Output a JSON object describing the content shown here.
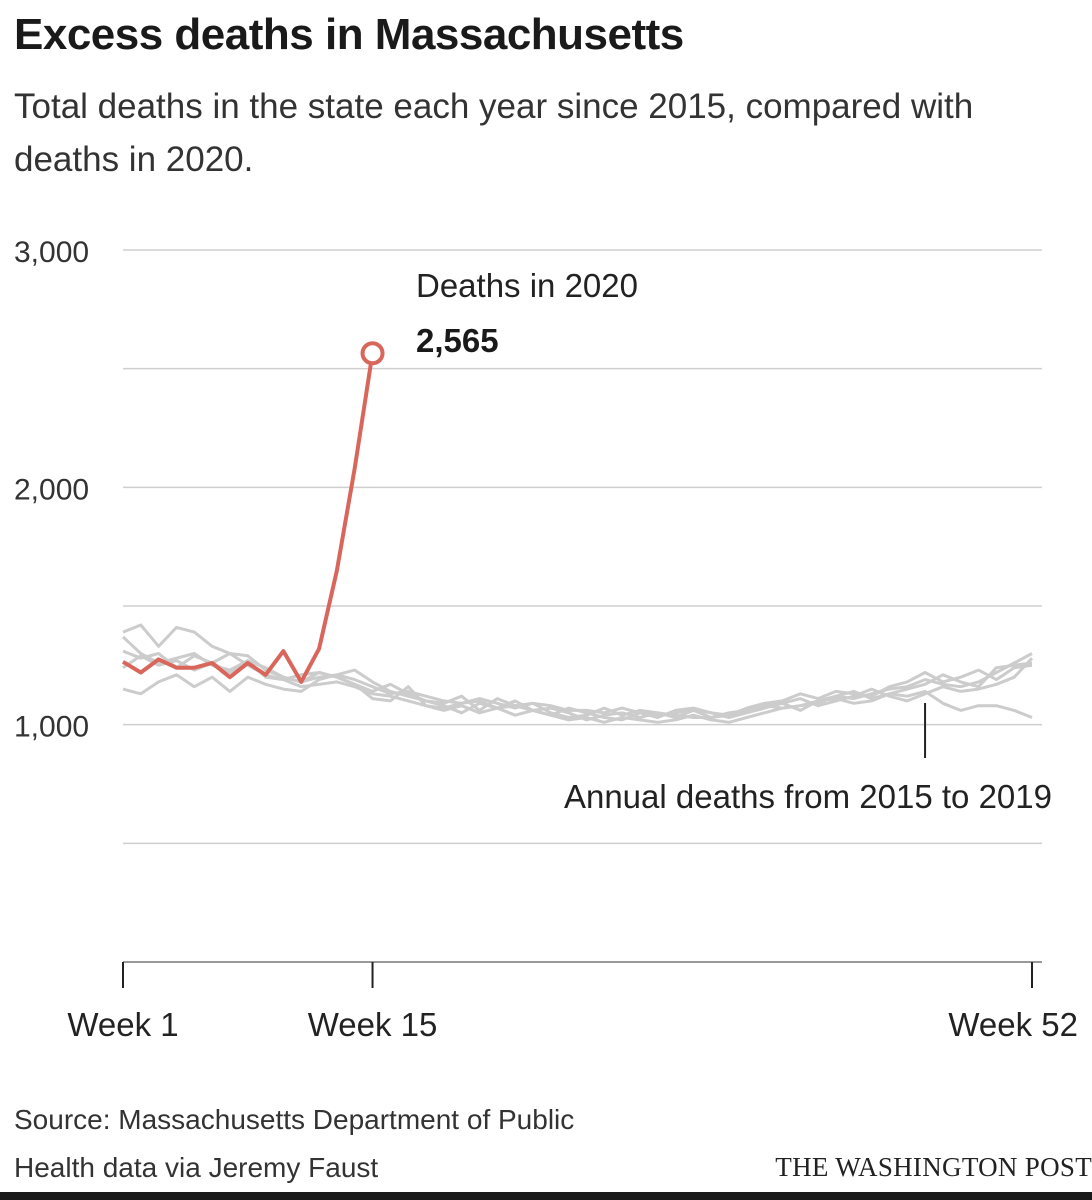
{
  "title": "Excess deaths in Massachusetts",
  "subtitle": "Total deaths in the state each year since 2015, compared with deaths in 2020.",
  "source": "Source: Massachusetts Department of Public Health data via Jeremy Faust",
  "credit": "THE WASHINGTON POST",
  "colors": {
    "highlight": "#d9665b",
    "background_series": "#cccccc",
    "grid": "#cfcfcf"
  },
  "chart_data": {
    "type": "line",
    "title": "Excess deaths in Massachusetts",
    "xlabel": "",
    "ylabel": "",
    "xlim": [
      1,
      52
    ],
    "ylim": [
      0,
      3000
    ],
    "y_gridlines": [
      500,
      1000,
      1500,
      2000,
      2500,
      3000
    ],
    "y_tick_labels": [
      {
        "value": 1000,
        "label": "1,000"
      },
      {
        "value": 2000,
        "label": "2,000"
      },
      {
        "value": 3000,
        "label": "3,000"
      }
    ],
    "x_ticks": [
      {
        "value": 1,
        "label": "Week 1"
      },
      {
        "value": 15,
        "label": "Week 15"
      },
      {
        "value": 52,
        "label": "Week 52"
      }
    ],
    "grid": true,
    "legend": "none",
    "annotations": [
      {
        "text": "Deaths in 2020",
        "series": "2020"
      },
      {
        "text": "2,565",
        "series": "2020",
        "x": 15,
        "y": 2565
      },
      {
        "text": "Annual deaths from 2015 to 2019",
        "x": 46,
        "y": 1100
      }
    ],
    "highlight_series": {
      "name": "2020",
      "x": [
        1,
        2,
        3,
        4,
        5,
        6,
        7,
        8,
        9,
        10,
        11,
        12,
        13,
        14,
        15
      ],
      "values": [
        1265,
        1220,
        1275,
        1240,
        1240,
        1260,
        1200,
        1260,
        1210,
        1310,
        1180,
        1320,
        1650,
        2080,
        2565
      ]
    },
    "background_series": [
      {
        "x": [
          1,
          2,
          3,
          4,
          5,
          6,
          7,
          8,
          9,
          10,
          11,
          12,
          13,
          14,
          15,
          16,
          17,
          18,
          19,
          20,
          21,
          22,
          23,
          24,
          25,
          26,
          27,
          28,
          29,
          30,
          31,
          32,
          33,
          34,
          35,
          36,
          37,
          38,
          39,
          40,
          41,
          42,
          43,
          44,
          45,
          46,
          47,
          48,
          49,
          50,
          51,
          52
        ],
        "values": [
          1390,
          1420,
          1330,
          1410,
          1390,
          1330,
          1300,
          1290,
          1230,
          1200,
          1180,
          1200,
          1210,
          1190,
          1160,
          1130,
          1140,
          1120,
          1100,
          1090,
          1110,
          1090,
          1070,
          1090,
          1080,
          1060,
          1060,
          1050,
          1070,
          1050,
          1040,
          1050,
          1060,
          1030,
          1040,
          1060,
          1080,
          1070,
          1080,
          1090,
          1120,
          1110,
          1130,
          1150,
          1160,
          1190,
          1170,
          1160,
          1180,
          1220,
          1260,
          1300
        ]
      },
      {
        "x": [
          1,
          2,
          3,
          4,
          5,
          6,
          7,
          8,
          9,
          10,
          11,
          12,
          13,
          14,
          15,
          16,
          17,
          18,
          19,
          20,
          21,
          22,
          23,
          24,
          25,
          26,
          27,
          28,
          29,
          30,
          31,
          32,
          33,
          34,
          35,
          36,
          37,
          38,
          39,
          40,
          41,
          42,
          43,
          44,
          45,
          46,
          47,
          48,
          49,
          50,
          51,
          52
        ],
        "values": [
          1370,
          1300,
          1260,
          1280,
          1300,
          1250,
          1230,
          1270,
          1240,
          1200,
          1180,
          1220,
          1200,
          1170,
          1110,
          1100,
          1160,
          1080,
          1070,
          1090,
          1100,
          1070,
          1080,
          1060,
          1070,
          1050,
          1020,
          1040,
          1050,
          1030,
          1050,
          1040,
          1030,
          1030,
          1050,
          1060,
          1080,
          1090,
          1060,
          1100,
          1110,
          1090,
          1100,
          1130,
          1150,
          1170,
          1210,
          1180,
          1160,
          1240,
          1250,
          1260
        ]
      },
      {
        "x": [
          1,
          2,
          3,
          4,
          5,
          6,
          7,
          8,
          9,
          10,
          11,
          12,
          13,
          14,
          15,
          16,
          17,
          18,
          19,
          20,
          21,
          22,
          23,
          24,
          25,
          26,
          27,
          28,
          29,
          30,
          31,
          32,
          33,
          34,
          35,
          36,
          37,
          38,
          39,
          40,
          41,
          42,
          43,
          44,
          45,
          46,
          47,
          48,
          49,
          50,
          51,
          52
        ],
        "values": [
          1240,
          1290,
          1250,
          1270,
          1230,
          1260,
          1220,
          1270,
          1200,
          1190,
          1210,
          1220,
          1200,
          1170,
          1140,
          1170,
          1130,
          1100,
          1090,
          1120,
          1060,
          1110,
          1080,
          1090,
          1050,
          1030,
          1040,
          1070,
          1040,
          1060,
          1050,
          1030,
          1060,
          1050,
          1040,
          1070,
          1090,
          1100,
          1130,
          1110,
          1140,
          1130,
          1120,
          1160,
          1180,
          1220,
          1180,
          1200,
          1230,
          1190,
          1240,
          1250
        ]
      },
      {
        "x": [
          1,
          2,
          3,
          4,
          5,
          6,
          7,
          8,
          9,
          10,
          11,
          12,
          13,
          14,
          15,
          16,
          17,
          18,
          19,
          20,
          21,
          22,
          23,
          24,
          25,
          26,
          27,
          28,
          29,
          30,
          31,
          32,
          33,
          34,
          35,
          36,
          37,
          38,
          39,
          40,
          41,
          42,
          43,
          44,
          45,
          46,
          47,
          48,
          49,
          50,
          51,
          52
        ],
        "values": [
          1150,
          1130,
          1180,
          1210,
          1160,
          1200,
          1140,
          1200,
          1170,
          1150,
          1140,
          1190,
          1210,
          1230,
          1180,
          1140,
          1120,
          1100,
          1080,
          1050,
          1090,
          1070,
          1100,
          1060,
          1040,
          1070,
          1050,
          1030,
          1020,
          1050,
          1030,
          1060,
          1070,
          1050,
          1030,
          1050,
          1070,
          1090,
          1110,
          1080,
          1100,
          1120,
          1150,
          1120,
          1100,
          1130,
          1160,
          1140,
          1150,
          1170,
          1200,
          1280
        ]
      },
      {
        "x": [
          1,
          2,
          3,
          4,
          5,
          6,
          7,
          8,
          9,
          10,
          11,
          12,
          13,
          14,
          15,
          16,
          17,
          18,
          19,
          20,
          21,
          22,
          23,
          24,
          25,
          26,
          27,
          28,
          29,
          30,
          31,
          32,
          33,
          34,
          35,
          36,
          37,
          38,
          39,
          40,
          41,
          42,
          43,
          44,
          45,
          46,
          47,
          48,
          49,
          50,
          51,
          52
        ],
        "values": [
          1310,
          1280,
          1300,
          1240,
          1290,
          1260,
          1300,
          1250,
          1210,
          1190,
          1160,
          1170,
          1180,
          1160,
          1130,
          1120,
          1100,
          1080,
          1060,
          1080,
          1050,
          1070,
          1040,
          1060,
          1040,
          1020,
          1030,
          1010,
          1030,
          1020,
          1010,
          1020,
          1040,
          1020,
          1010,
          1030,
          1050,
          1070,
          1080,
          1100,
          1120,
          1140,
          1110,
          1130,
          1120,
          1140,
          1090,
          1060,
          1080,
          1080,
          1060,
          1030
        ]
      }
    ]
  }
}
